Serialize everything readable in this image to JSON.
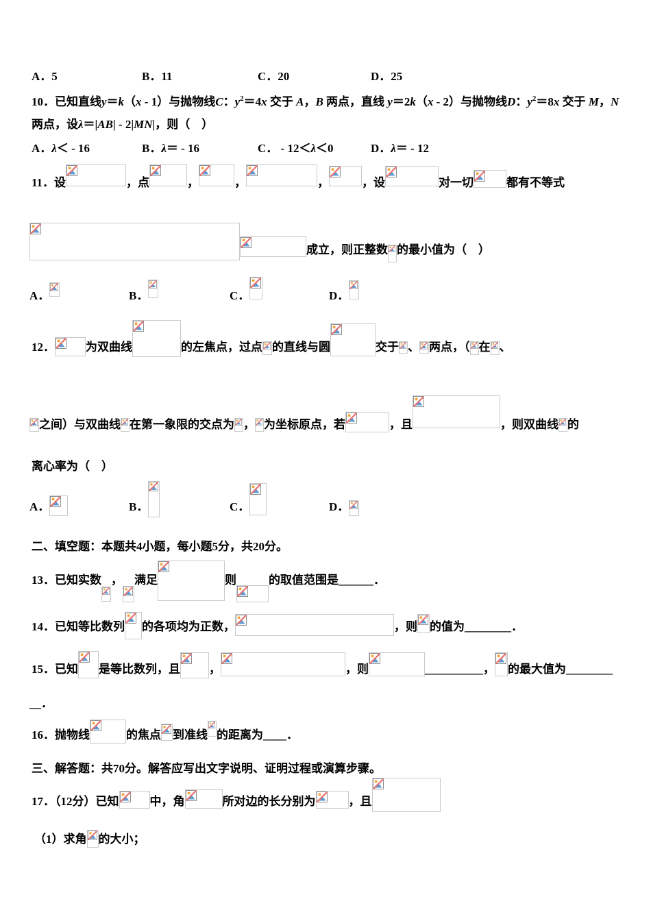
{
  "meta": {
    "description": "Chinese math exam page with broken (missing) formula images",
    "background": "#ffffff",
    "text_color": "#000000"
  },
  "icon": {
    "name": "broken-image-icon",
    "box_border": "#c9c9c9",
    "icon_border": "#8f8f8f",
    "sun": "#f2a33a",
    "mountain": "#5b9bd5",
    "slash": "#e87272"
  },
  "paragraphs": {
    "opt9": {
      "segments": [
        {
          "cell": 161,
          "segments": [
            {
              "t": "A．5"
            }
          ]
        },
        {
          "cell": 169,
          "segments": [
            {
              "t": "B．11"
            }
          ]
        },
        {
          "cell": 165,
          "segments": [
            {
              "t": "C．20"
            }
          ]
        },
        {
          "cell": 0,
          "segments": [
            {
              "t": "D．25"
            }
          ]
        }
      ]
    },
    "q10_l1": {
      "segments": [
        {
          "t": "10．已知直线"
        },
        {
          "t": "y",
          "i": 1
        },
        {
          "t": "＝"
        },
        {
          "t": "k",
          "i": 1
        },
        {
          "t": "（"
        },
        {
          "t": "x",
          "i": 1
        },
        {
          "t": " - 1）与抛物线"
        },
        {
          "t": "C",
          "i": 1
        },
        {
          "t": "："
        },
        {
          "t": "y",
          "i": 1
        },
        {
          "t": "2",
          "sup": 1
        },
        {
          "t": "＝4"
        },
        {
          "t": "x",
          "i": 1
        },
        {
          "t": " 交于 "
        },
        {
          "t": "A",
          "i": 1
        },
        {
          "t": "，"
        },
        {
          "t": "B",
          "i": 1
        },
        {
          "t": " 两点，直线 "
        },
        {
          "t": "y",
          "i": 1
        },
        {
          "t": "＝2"
        },
        {
          "t": "k",
          "i": 1
        },
        {
          "t": "（"
        },
        {
          "t": "x",
          "i": 1
        },
        {
          "t": " - 2）与抛物线"
        },
        {
          "t": "D",
          "i": 1
        },
        {
          "t": "："
        },
        {
          "t": "y",
          "i": 1
        },
        {
          "t": "2",
          "sup": 1
        },
        {
          "t": "＝8"
        },
        {
          "t": "x",
          "i": 1
        },
        {
          "t": " 交于 "
        },
        {
          "t": "M",
          "i": 1
        },
        {
          "t": "，"
        },
        {
          "t": "N",
          "i": 1
        }
      ]
    },
    "q10_l2": {
      "segments": [
        {
          "t": "两点，设"
        },
        {
          "t": "λ",
          "i": 1
        },
        {
          "t": "＝|"
        },
        {
          "t": "AB",
          "i": 1
        },
        {
          "t": "| - 2|"
        },
        {
          "t": "MN",
          "i": 1
        },
        {
          "t": "|，则（　）"
        }
      ]
    },
    "q10_opts": {
      "segments": [
        {
          "cell": 161,
          "segments": [
            {
              "t": "A．"
            },
            {
              "t": "λ",
              "i": 1
            },
            {
              "t": "＜ - 16"
            }
          ]
        },
        {
          "cell": 169,
          "segments": [
            {
              "t": "B．"
            },
            {
              "t": "λ",
              "i": 1
            },
            {
              "t": "＝ - 16"
            }
          ]
        },
        {
          "cell": 165,
          "segments": [
            {
              "t": "C． - 12＜"
            },
            {
              "t": "λ",
              "i": 1
            },
            {
              "t": "＜0"
            }
          ]
        },
        {
          "cell": 0,
          "segments": [
            {
              "t": "D．"
            },
            {
              "t": "λ",
              "i": 1
            },
            {
              "t": "＝ - 12"
            }
          ]
        }
      ]
    },
    "q11_l1": {
      "segments": [
        {
          "t": "11．设"
        },
        {
          "ph": [
            88,
            32,
            0
          ]
        },
        {
          "t": "，点"
        },
        {
          "ph": [
            55,
            32,
            0
          ]
        },
        {
          "t": "，"
        },
        {
          "ph": [
            52,
            32,
            0
          ]
        },
        {
          "t": "，"
        },
        {
          "ph": [
            104,
            32,
            0
          ]
        },
        {
          "t": "，"
        },
        {
          "ph": [
            48,
            30,
            0
          ]
        },
        {
          "t": "，设"
        },
        {
          "ph": [
            78,
            30,
            0
          ]
        },
        {
          "t": "对一切"
        },
        {
          "ph": [
            48,
            26,
            -2
          ]
        },
        {
          "t": "都有不等式"
        }
      ]
    },
    "q11_l2": {
      "segments": [
        {
          "ph": [
            307,
            55,
            -10
          ]
        },
        {
          "ph": [
            97,
            30,
            -5
          ]
        },
        {
          "t": "成立，则正整数"
        },
        {
          "ph": [
            13,
            26,
            -13
          ]
        },
        {
          "t": "的最小值为（　）"
        }
      ]
    },
    "q11_opts": {
      "segments": [
        {
          "cell": 145,
          "segments": [
            {
              "t": "A．"
            },
            {
              "ph": [
                15,
                21,
                4
              ]
            }
          ]
        },
        {
          "cell": 147,
          "segments": [
            {
              "t": "B．"
            },
            {
              "ph": [
                15,
                27,
                2
              ]
            }
          ]
        },
        {
          "cell": 145,
          "segments": [
            {
              "t": "C．"
            },
            {
              "ph": [
                19,
                33,
                0
              ]
            }
          ]
        },
        {
          "cell": 0,
          "segments": [
            {
              "t": "D．"
            },
            {
              "ph": [
                15,
                28,
                0
              ]
            }
          ]
        }
      ]
    },
    "q12_l1": {
      "segments": [
        {
          "t": "12．"
        },
        {
          "ph": [
            45,
            28,
            -8
          ]
        },
        {
          "t": "为双曲线"
        },
        {
          "ph": [
            71,
            54,
            -9
          ]
        },
        {
          "t": "的左焦点，过点"
        },
        {
          "ph": [
            14,
            20,
            -6
          ]
        },
        {
          "t": "的直线与圆"
        },
        {
          "ph": [
            66,
            48,
            -8
          ]
        },
        {
          "t": "交于"
        },
        {
          "ph": [
            13,
            18,
            -4
          ]
        },
        {
          "t": "、"
        },
        {
          "ph": [
            14,
            18,
            -4
          ]
        },
        {
          "t": "两点，（"
        },
        {
          "ph": [
            13,
            20,
            -6
          ]
        },
        {
          "t": "在"
        },
        {
          "ph": [
            13,
            20,
            -6
          ]
        },
        {
          "t": "、"
        }
      ]
    },
    "q12_l2": {
      "segments": [
        {
          "ph": [
            14,
            20,
            -5
          ]
        },
        {
          "t": "之间）与双曲线"
        },
        {
          "ph": [
            13,
            20,
            -5
          ]
        },
        {
          "t": "在第一象限的交点为"
        },
        {
          "ph": [
            13,
            20,
            -5
          ]
        },
        {
          "t": "，"
        },
        {
          "ph": [
            13,
            20,
            -5
          ]
        },
        {
          "t": "为坐标原点，若"
        },
        {
          "ph": [
            64,
            30,
            -6
          ]
        },
        {
          "t": "，且"
        },
        {
          "ph": [
            128,
            48,
            0
          ]
        },
        {
          "t": "，则双曲线"
        },
        {
          "ph": [
            13,
            20,
            -5
          ]
        },
        {
          "t": "的"
        }
      ]
    },
    "q12_l3": {
      "text": "离心率为（　）"
    },
    "q12_opts": {
      "segments": [
        {
          "cell": 145,
          "segments": [
            {
              "t": "A．"
            },
            {
              "ph": [
                27,
                30,
                -8
              ]
            }
          ]
        },
        {
          "cell": 147,
          "segments": [
            {
              "t": "B．"
            },
            {
              "ph": [
                17,
                53,
                -10
              ]
            }
          ]
        },
        {
          "cell": 145,
          "segments": [
            {
              "t": "C．"
            },
            {
              "ph": [
                25,
                47,
                -7
              ]
            }
          ]
        },
        {
          "cell": 0,
          "segments": [
            {
              "t": "D．"
            },
            {
              "ph": [
                15,
                23,
                -8
              ]
            }
          ]
        }
      ]
    },
    "sec2": {
      "text": "二、填空题：本题共4小题，每小题5分，共20分。"
    },
    "q13": {
      "segments": [
        {
          "t": "13．已知实数"
        },
        {
          "ph": [
            14,
            22,
            -26
          ]
        },
        {
          "t": "，"
        },
        {
          "ph": [
            17,
            24,
            -27
          ]
        },
        {
          "t": "满足"
        },
        {
          "ph": [
            98,
            59,
            -25
          ]
        },
        {
          "t": "则"
        },
        {
          "ph": [
            47,
            25,
            -27
          ]
        },
        {
          "t": "的取值范围是"
        },
        {
          "t": "______．"
        }
      ]
    },
    "q14": {
      "segments": [
        {
          "t": "14．已知等比数列"
        },
        {
          "ph": [
            25,
            40,
            -13
          ]
        },
        {
          "t": "的各项均为正数，"
        },
        {
          "ph": [
            232,
            32,
            -8
          ]
        },
        {
          "t": "，则"
        },
        {
          "ph": [
            18,
            28,
            -4
          ]
        },
        {
          "t": "的值为"
        },
        {
          "t": "________．"
        }
      ]
    },
    "q15_l1": {
      "segments": [
        {
          "t": "15．已知"
        },
        {
          "ph": [
            30,
            40,
            -8
          ]
        },
        {
          "t": "是等比数列，且"
        },
        {
          "ph": [
            42,
            38,
            -8
          ]
        },
        {
          "t": "，"
        },
        {
          "ph": [
            182,
            35,
            -5
          ]
        },
        {
          "t": "，则"
        },
        {
          "ph": [
            82,
            35,
            -5
          ]
        },
        {
          "t": "__________，"
        },
        {
          "ph": [
            19,
            35,
            -5
          ]
        },
        {
          "t": "的最大值为"
        },
        {
          "t": "________"
        }
      ]
    },
    "q15_l2": {
      "text": "__．"
    },
    "q16": {
      "segments": [
        {
          "t": "16．抛物线"
        },
        {
          "ph": [
            53,
            35,
            -7
          ]
        },
        {
          "t": "的焦点"
        },
        {
          "ph": [
            17,
            25,
            -3
          ]
        },
        {
          "t": "到准线"
        },
        {
          "ph": [
            13,
            23,
            3
          ]
        },
        {
          "t": "的距离为"
        },
        {
          "t": "____．"
        }
      ]
    },
    "sec3": {
      "text": "三、解答题：共70分。解答应写出文字说明、证明过程或演算步骤。"
    },
    "q17": {
      "segments": [
        {
          "t": "17．（12分）已知"
        },
        {
          "ph": [
            45,
            26,
            -5
          ]
        },
        {
          "t": "中，角"
        },
        {
          "ph": [
            55,
            28,
            -5
          ]
        },
        {
          "t": "所对边的长分别为"
        },
        {
          "ph": [
            48,
            26,
            -5
          ]
        },
        {
          "t": "，且"
        },
        {
          "ph": [
            100,
            50,
            -10
          ]
        }
      ]
    },
    "q17_p1": {
      "segments": [
        {
          "t": "（1）求角"
        },
        {
          "ph": [
            17,
            26,
            -7
          ]
        },
        {
          "t": "的大小；"
        }
      ]
    }
  }
}
